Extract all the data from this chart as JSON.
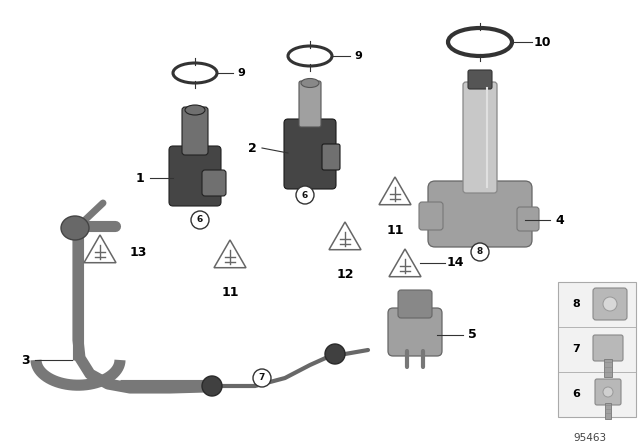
{
  "bg_color": "#ffffff",
  "sensor_dark": "#454545",
  "sensor_mid": "#707070",
  "sensor_light": "#a0a0a0",
  "sensor_lighter": "#c8c8c8",
  "hose_color": "#787878",
  "hose_edge": "#555555",
  "ring_color": "#404040",
  "triangle_color": "#666666",
  "label_color": "#000000",
  "panel_bg": "#f0f0f0",
  "panel_edge": "#bbbbbb",
  "diagram_id": "95463",
  "figw": 6.4,
  "figh": 4.48,
  "dpi": 100
}
